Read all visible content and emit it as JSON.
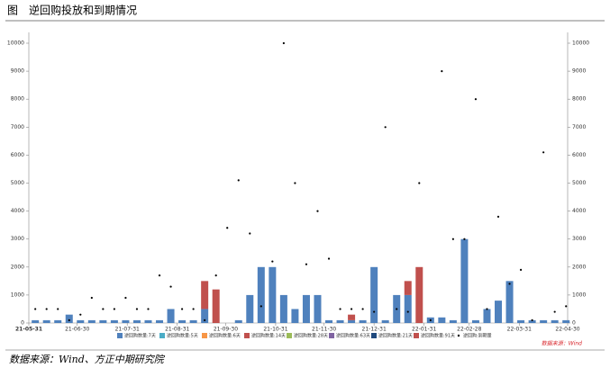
{
  "chart_data": {
    "type": "bar",
    "title": "图　逆回购投放和到期情况",
    "source_note": "数据来源：Wind",
    "footer": "数据来源：Wind、方正中期研究院",
    "stacked": true,
    "grid": false,
    "x": [
      "21-06-04",
      "21-06-11",
      "21-06-18",
      "21-06-25",
      "21-07-02",
      "21-07-09",
      "21-07-16",
      "21-07-23",
      "21-07-30",
      "21-08-06",
      "21-08-13",
      "21-08-20",
      "21-08-27",
      "21-09-03",
      "21-09-10",
      "21-09-17",
      "21-09-24",
      "21-10-01",
      "21-10-08",
      "21-10-15",
      "21-10-22",
      "21-10-29",
      "21-11-05",
      "21-11-12",
      "21-11-19",
      "21-11-26",
      "21-12-03",
      "21-12-10",
      "21-12-17",
      "21-12-24",
      "21-12-31",
      "22-01-07",
      "22-01-14",
      "22-01-21",
      "22-01-28",
      "22-02-04",
      "22-02-11",
      "22-02-18",
      "22-02-25",
      "22-03-04",
      "22-03-11",
      "22-03-18",
      "22-03-25",
      "22-04-01",
      "22-04-08",
      "22-04-15",
      "22-04-22",
      "22-04-29"
    ],
    "xlim": [
      "21-05-31",
      "22-04-30"
    ],
    "xticks": [
      "21-05-31",
      "21-06-30",
      "21-07-31",
      "21-08-31",
      "21-09-30",
      "21-10-31",
      "21-11-30",
      "21-12-31",
      "22-01-31",
      "22-02-28",
      "22-03-31",
      "22-04-30"
    ],
    "ylim": [
      0,
      10000
    ],
    "yticks": [
      0,
      1000,
      2000,
      3000,
      4000,
      5000,
      6000,
      7000,
      8000,
      9000,
      10000
    ],
    "series": [
      {
        "name": "逆回购数量:7天",
        "color": "#4f81bd",
        "values": [
          100,
          100,
          100,
          300,
          100,
          100,
          100,
          100,
          100,
          100,
          100,
          100,
          500,
          100,
          100,
          500,
          null,
          null,
          100,
          1000,
          2000,
          2000,
          1000,
          500,
          1000,
          1000,
          100,
          100,
          100,
          100,
          2000,
          100,
          1000,
          1000,
          null,
          200,
          200,
          100,
          3000,
          100,
          500,
          800,
          1500,
          100,
          100,
          100,
          100,
          100
        ]
      },
      {
        "name": "逆回购数量:5天",
        "color": "#4bacc6",
        "values": [
          null,
          null,
          null,
          null,
          null,
          null,
          null,
          null,
          null,
          null,
          null,
          null,
          null,
          null,
          null,
          null,
          null,
          null,
          null,
          null,
          null,
          null,
          null,
          null,
          null,
          null,
          null,
          null,
          null,
          null,
          null,
          null,
          null,
          null,
          null,
          null,
          null,
          null,
          null,
          null,
          null,
          null,
          null,
          null,
          null,
          null,
          null,
          null
        ]
      },
      {
        "name": "逆回购数量:6天",
        "color": "#f79646",
        "values": [
          null,
          null,
          null,
          null,
          null,
          null,
          null,
          null,
          null,
          null,
          null,
          null,
          null,
          null,
          null,
          null,
          null,
          null,
          null,
          null,
          null,
          null,
          null,
          null,
          null,
          null,
          null,
          null,
          null,
          null,
          null,
          null,
          null,
          null,
          null,
          null,
          null,
          null,
          null,
          null,
          null,
          null,
          null,
          null,
          null,
          null,
          null,
          null
        ]
      },
      {
        "name": "逆回购数量:14天",
        "color": "#c0504d",
        "values": [
          null,
          null,
          null,
          null,
          null,
          null,
          null,
          null,
          null,
          null,
          null,
          null,
          null,
          null,
          null,
          1000,
          1200,
          null,
          null,
          null,
          null,
          null,
          null,
          null,
          null,
          null,
          null,
          null,
          200,
          null,
          null,
          null,
          null,
          500,
          2000,
          null,
          null,
          null,
          null,
          null,
          null,
          null,
          null,
          null,
          null,
          null,
          null,
          null
        ]
      },
      {
        "name": "逆回购数量:28天",
        "color": "#9bbb59",
        "values": [
          null,
          null,
          null,
          null,
          null,
          null,
          null,
          null,
          null,
          null,
          null,
          null,
          null,
          null,
          null,
          null,
          null,
          null,
          null,
          null,
          null,
          null,
          null,
          null,
          null,
          null,
          null,
          null,
          null,
          null,
          null,
          null,
          null,
          null,
          null,
          null,
          null,
          null,
          null,
          null,
          null,
          null,
          null,
          null,
          null,
          null,
          null,
          null
        ]
      },
      {
        "name": "逆回购数量:63天",
        "color": "#8064a2",
        "values": [
          null,
          null,
          null,
          null,
          null,
          null,
          null,
          null,
          null,
          null,
          null,
          null,
          null,
          null,
          null,
          null,
          null,
          null,
          null,
          null,
          null,
          null,
          null,
          null,
          null,
          null,
          null,
          null,
          null,
          null,
          null,
          null,
          null,
          null,
          null,
          null,
          null,
          null,
          null,
          null,
          null,
          null,
          null,
          null,
          null,
          null,
          null,
          null
        ]
      },
      {
        "name": "逆回购数量:21天",
        "color": "#1f497d",
        "values": [
          null,
          null,
          null,
          null,
          null,
          null,
          null,
          null,
          null,
          null,
          null,
          null,
          null,
          null,
          null,
          null,
          null,
          null,
          null,
          null,
          null,
          null,
          null,
          null,
          null,
          null,
          null,
          null,
          null,
          null,
          null,
          null,
          null,
          null,
          null,
          null,
          null,
          null,
          null,
          null,
          null,
          null,
          null,
          null,
          null,
          null,
          null,
          null
        ]
      },
      {
        "name": "逆回购数量:91天",
        "color": "#c0504d",
        "values": [
          null,
          null,
          null,
          null,
          null,
          null,
          null,
          null,
          null,
          null,
          null,
          null,
          null,
          null,
          null,
          null,
          null,
          null,
          null,
          null,
          null,
          null,
          null,
          null,
          null,
          null,
          null,
          null,
          null,
          null,
          null,
          null,
          null,
          null,
          null,
          null,
          null,
          null,
          null,
          null,
          null,
          null,
          null,
          null,
          null,
          null,
          null,
          null
        ]
      },
      {
        "name": "逆回购:到期量",
        "color": "#000000",
        "kind": "dot",
        "values": [
          500,
          500,
          500,
          100,
          300,
          900,
          500,
          500,
          900,
          500,
          500,
          1700,
          1300,
          500,
          500,
          100,
          1700,
          3400,
          5100,
          3200,
          600,
          2200,
          10000,
          5000,
          2100,
          4000,
          2300,
          500,
          500,
          500,
          400,
          7000,
          500,
          400,
          5000,
          100,
          9000,
          3000,
          3000,
          8000,
          500,
          3800,
          1400,
          1900,
          100,
          6100,
          400,
          600
        ]
      }
    ]
  }
}
